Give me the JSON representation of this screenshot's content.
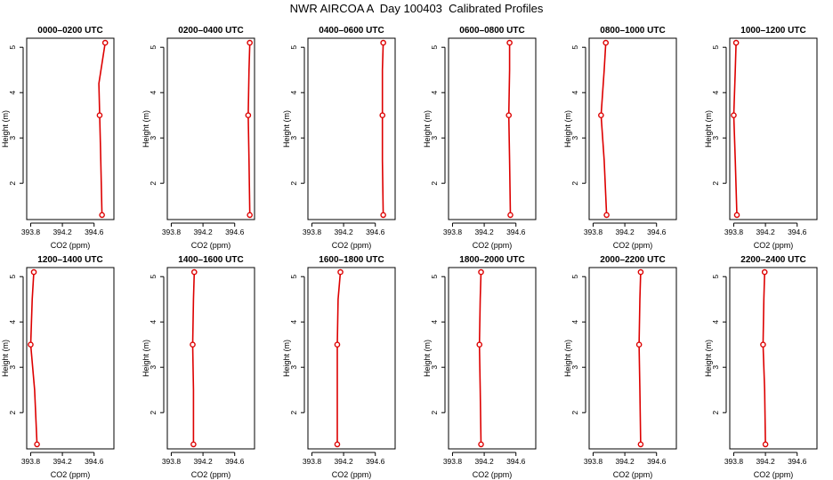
{
  "title": "NWR AIRCOA A  Day 100403  Calibrated Profiles",
  "chart_data": [
    {
      "type": "line",
      "title": "0000–0200 UTC",
      "xlabel": "CO2 (ppm)",
      "ylabel": "Height (m)",
      "xlim": [
        393.75,
        394.85
      ],
      "ylim": [
        1.2,
        5.2
      ],
      "xticks": [
        393.8,
        394.2,
        394.6
      ],
      "yticks": [
        2,
        3,
        4,
        5
      ],
      "grid": false,
      "series": [
        {
          "x": [
            394.7,
            394.68,
            394.67,
            394.66,
            394.74
          ],
          "y": [
            1.3,
            2.8,
            3.5,
            4.2,
            5.1
          ]
        }
      ]
    },
    {
      "type": "line",
      "title": "0200–0400 UTC",
      "xlabel": "CO2 (ppm)",
      "ylabel": "Height (m)",
      "xlim": [
        393.75,
        394.85
      ],
      "ylim": [
        1.2,
        5.2
      ],
      "xticks": [
        393.8,
        394.2,
        394.6
      ],
      "yticks": [
        2,
        3,
        4,
        5
      ],
      "grid": false,
      "series": [
        {
          "x": [
            394.79,
            394.78,
            394.77,
            394.78,
            394.79
          ],
          "y": [
            1.3,
            2.5,
            3.5,
            4.5,
            5.1
          ]
        }
      ]
    },
    {
      "type": "line",
      "title": "0400–0600 UTC",
      "xlabel": "CO2 (ppm)",
      "ylabel": "Height (m)",
      "xlim": [
        393.75,
        394.85
      ],
      "ylim": [
        1.2,
        5.2
      ],
      "xticks": [
        393.8,
        394.2,
        394.6
      ],
      "yticks": [
        2,
        3,
        4,
        5
      ],
      "grid": false,
      "series": [
        {
          "x": [
            394.7,
            394.69,
            394.69,
            394.69,
            394.7
          ],
          "y": [
            1.3,
            2.5,
            3.5,
            4.5,
            5.1
          ]
        }
      ]
    },
    {
      "type": "line",
      "title": "0600–0800 UTC",
      "xlabel": "CO2 (ppm)",
      "ylabel": "Height (m)",
      "xlim": [
        393.75,
        394.85
      ],
      "ylim": [
        1.2,
        5.2
      ],
      "xticks": [
        393.8,
        394.2,
        394.6
      ],
      "yticks": [
        2,
        3,
        4,
        5
      ],
      "grid": false,
      "series": [
        {
          "x": [
            394.53,
            394.52,
            394.51,
            394.52,
            394.52
          ],
          "y": [
            1.3,
            2.5,
            3.5,
            4.5,
            5.1
          ]
        }
      ]
    },
    {
      "type": "line",
      "title": "0800–1000 UTC",
      "xlabel": "CO2 (ppm)",
      "ylabel": "Height (m)",
      "xlim": [
        393.75,
        394.85
      ],
      "ylim": [
        1.2,
        5.2
      ],
      "xticks": [
        393.8,
        394.2,
        394.6
      ],
      "yticks": [
        2,
        3,
        4,
        5
      ],
      "grid": false,
      "series": [
        {
          "x": [
            393.97,
            393.94,
            393.9,
            393.94,
            393.96
          ],
          "y": [
            1.3,
            2.5,
            3.5,
            4.5,
            5.1
          ]
        }
      ]
    },
    {
      "type": "line",
      "title": "1000–1200 UTC",
      "xlabel": "CO2 (ppm)",
      "ylabel": "Height (m)",
      "xlim": [
        393.75,
        394.85
      ],
      "ylim": [
        1.2,
        5.2
      ],
      "xticks": [
        393.8,
        394.2,
        394.6
      ],
      "yticks": [
        2,
        3,
        4,
        5
      ],
      "grid": false,
      "series": [
        {
          "x": [
            393.84,
            393.82,
            393.8,
            393.82,
            393.83
          ],
          "y": [
            1.3,
            2.5,
            3.5,
            4.5,
            5.1
          ]
        }
      ]
    },
    {
      "type": "line",
      "title": "1200–1400 UTC",
      "xlabel": "CO2 (ppm)",
      "ylabel": "Height (m)",
      "xlim": [
        393.75,
        394.85
      ],
      "ylim": [
        1.2,
        5.2
      ],
      "xticks": [
        393.8,
        394.2,
        394.6
      ],
      "yticks": [
        2,
        3,
        4,
        5
      ],
      "grid": false,
      "series": [
        {
          "x": [
            393.88,
            393.85,
            393.8,
            393.82,
            393.84
          ],
          "y": [
            1.3,
            2.5,
            3.5,
            4.5,
            5.1
          ]
        }
      ]
    },
    {
      "type": "line",
      "title": "1400–1600 UTC",
      "xlabel": "CO2 (ppm)",
      "ylabel": "Height (m)",
      "xlim": [
        393.75,
        394.85
      ],
      "ylim": [
        1.2,
        5.2
      ],
      "xticks": [
        393.8,
        394.2,
        394.6
      ],
      "yticks": [
        2,
        3,
        4,
        5
      ],
      "grid": false,
      "series": [
        {
          "x": [
            394.08,
            394.08,
            394.07,
            394.08,
            394.09
          ],
          "y": [
            1.3,
            2.5,
            3.5,
            4.5,
            5.1
          ]
        }
      ]
    },
    {
      "type": "line",
      "title": "1600–1800 UTC",
      "xlabel": "CO2 (ppm)",
      "ylabel": "Height (m)",
      "xlim": [
        393.75,
        394.85
      ],
      "ylim": [
        1.2,
        5.2
      ],
      "xticks": [
        393.8,
        394.2,
        394.6
      ],
      "yticks": [
        2,
        3,
        4,
        5
      ],
      "grid": false,
      "series": [
        {
          "x": [
            394.12,
            394.12,
            394.12,
            394.13,
            394.16
          ],
          "y": [
            1.3,
            2.5,
            3.5,
            4.5,
            5.1
          ]
        }
      ]
    },
    {
      "type": "line",
      "title": "1800–2000 UTC",
      "xlabel": "CO2 (ppm)",
      "ylabel": "Height (m)",
      "xlim": [
        393.75,
        394.85
      ],
      "ylim": [
        1.2,
        5.2
      ],
      "xticks": [
        393.8,
        394.2,
        394.6
      ],
      "yticks": [
        2,
        3,
        4,
        5
      ],
      "grid": false,
      "series": [
        {
          "x": [
            394.16,
            394.15,
            394.14,
            394.15,
            394.16
          ],
          "y": [
            1.3,
            2.5,
            3.5,
            4.5,
            5.1
          ]
        }
      ]
    },
    {
      "type": "line",
      "title": "2000–2200 UTC",
      "xlabel": "CO2 (ppm)",
      "ylabel": "Height (m)",
      "xlim": [
        393.75,
        394.85
      ],
      "ylim": [
        1.2,
        5.2
      ],
      "xticks": [
        393.8,
        394.2,
        394.6
      ],
      "yticks": [
        2,
        3,
        4,
        5
      ],
      "grid": false,
      "series": [
        {
          "x": [
            394.4,
            394.39,
            394.38,
            394.39,
            394.4
          ],
          "y": [
            1.3,
            2.5,
            3.5,
            4.5,
            5.1
          ]
        }
      ]
    },
    {
      "type": "line",
      "title": "2200–2400 UTC",
      "xlabel": "CO2 (ppm)",
      "ylabel": "Height (m)",
      "xlim": [
        393.75,
        394.85
      ],
      "ylim": [
        1.2,
        5.2
      ],
      "xticks": [
        393.8,
        394.2,
        394.6
      ],
      "yticks": [
        2,
        3,
        4,
        5
      ],
      "grid": false,
      "series": [
        {
          "x": [
            394.2,
            394.19,
            394.17,
            394.18,
            394.19
          ],
          "y": [
            1.3,
            2.5,
            3.5,
            4.5,
            5.1
          ]
        }
      ]
    }
  ],
  "colors": {
    "line": "#dd0000",
    "marker": "#dd0000",
    "axis": "#000000"
  }
}
